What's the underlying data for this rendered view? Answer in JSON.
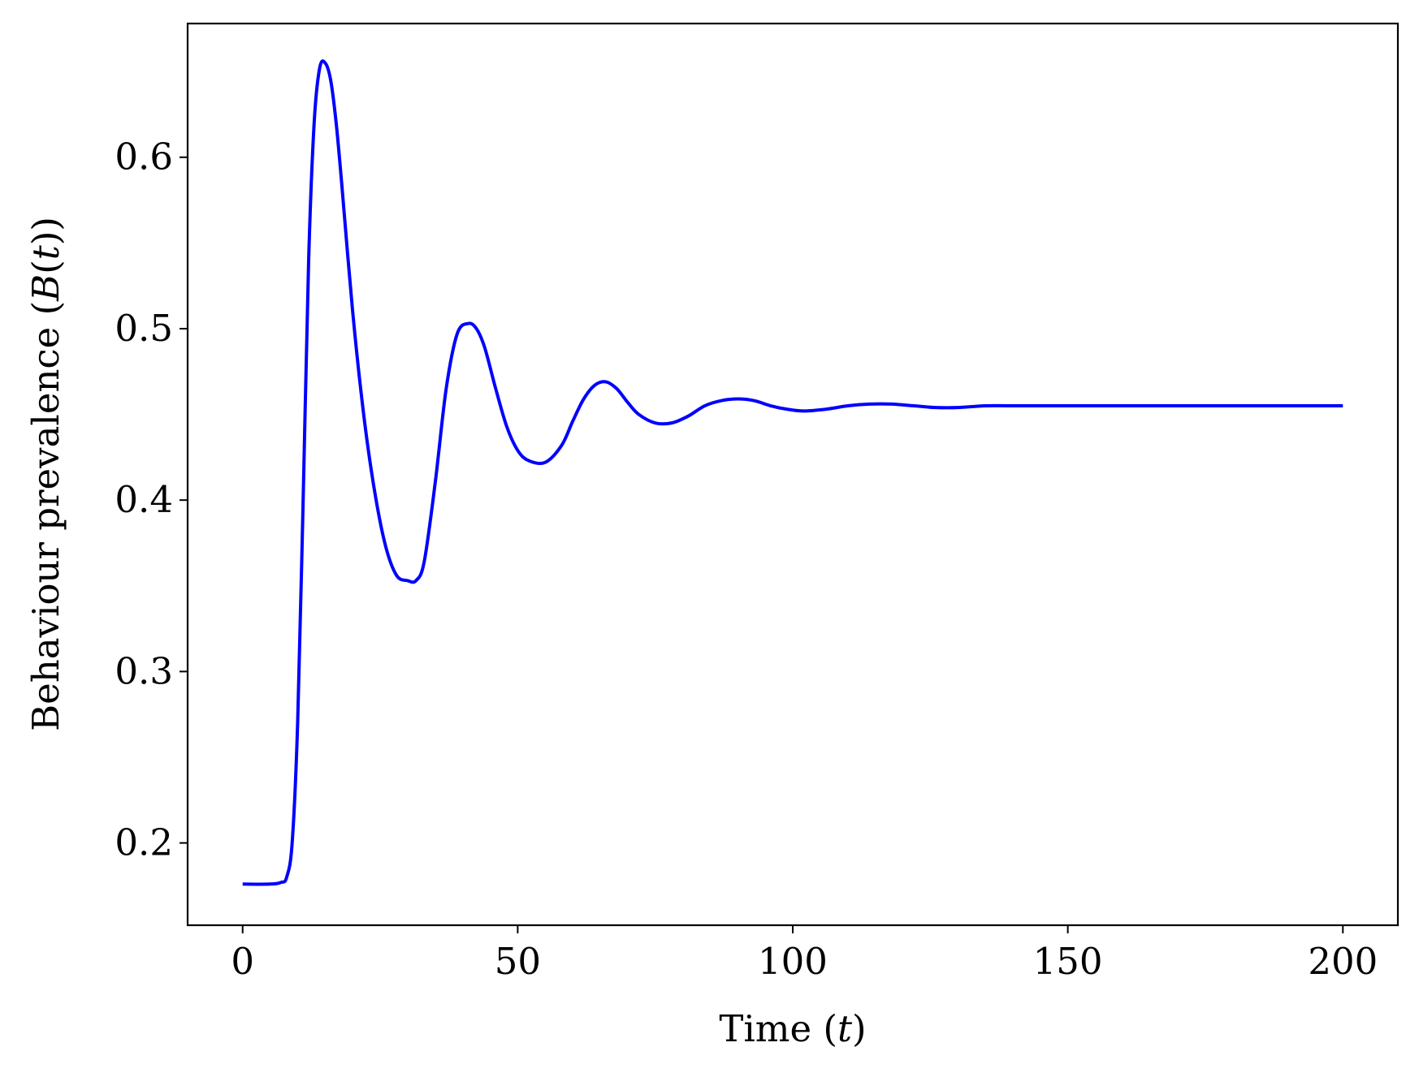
{
  "chart_data": {
    "type": "line",
    "title": "",
    "xlabel": "Time (t)",
    "ylabel": "Behaviour prevalence (B(t))",
    "xlim": [
      -10,
      210
    ],
    "ylim": [
      0.152,
      0.678
    ],
    "xticks": [
      0,
      50,
      100,
      150,
      200
    ],
    "xtick_labels": [
      "0",
      "50",
      "100",
      "150",
      "200"
    ],
    "yticks": [
      0.2,
      0.3,
      0.4,
      0.5,
      0.6
    ],
    "ytick_labels": [
      "0.2",
      "0.3",
      "0.4",
      "0.5",
      "0.6"
    ],
    "grid": false,
    "series": [
      {
        "color": "#0000ff",
        "x": [
          0,
          5,
          7,
          8,
          9,
          10,
          11,
          12,
          13,
          14,
          15,
          16,
          17,
          18,
          20,
          22,
          24,
          26,
          28,
          30,
          31.5,
          33,
          35,
          37,
          39,
          41,
          42.5,
          44,
          46,
          48,
          50,
          52,
          55,
          58,
          60,
          62,
          64,
          66,
          68,
          70,
          72,
          75,
          78,
          81,
          84,
          87,
          90,
          93,
          96,
          99,
          102,
          106,
          110,
          114,
          118,
          122,
          126,
          130,
          135,
          140,
          150,
          160,
          170,
          180,
          190,
          200
        ],
        "y": [
          0.176,
          0.176,
          0.177,
          0.18,
          0.2,
          0.27,
          0.4,
          0.54,
          0.62,
          0.652,
          0.655,
          0.645,
          0.62,
          0.585,
          0.51,
          0.45,
          0.405,
          0.373,
          0.356,
          0.353,
          0.353,
          0.364,
          0.41,
          0.465,
          0.497,
          0.503,
          0.5,
          0.489,
          0.465,
          0.443,
          0.429,
          0.423,
          0.422,
          0.432,
          0.446,
          0.459,
          0.467,
          0.469,
          0.465,
          0.457,
          0.45,
          0.445,
          0.445,
          0.449,
          0.455,
          0.458,
          0.459,
          0.458,
          0.455,
          0.453,
          0.452,
          0.453,
          0.455,
          0.456,
          0.456,
          0.455,
          0.454,
          0.454,
          0.455,
          0.455,
          0.455,
          0.455,
          0.455,
          0.455,
          0.455,
          0.455
        ]
      }
    ]
  }
}
